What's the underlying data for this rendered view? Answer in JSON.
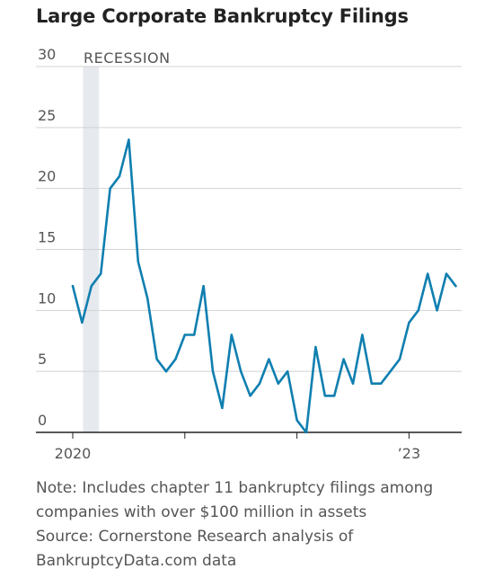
{
  "title": "Large Corporate Bankruptcy Filings",
  "notes": [
    "Note: Includes chapter 11 bankruptcy filings among",
    "companies with over $100 million in assets",
    "Source: Cornerstone Research analysis of",
    "BankruptcyData.com data"
  ],
  "colors": {
    "line": "#0f7fb0",
    "recession": "#e6e9ee",
    "grid": "#d3d3d3",
    "axis": "#222222"
  },
  "chart_data": {
    "type": "line",
    "title": "Large Corporate Bankruptcy Filings",
    "xlabel": "",
    "ylabel": "",
    "ylim": [
      0,
      30
    ],
    "yticks": [
      0,
      5,
      10,
      15,
      20,
      25,
      30
    ],
    "x_tick_labels": [
      {
        "date": "2020-01",
        "label": "2020"
      },
      {
        "date": "2021-01",
        "label": ""
      },
      {
        "date": "2022-01",
        "label": ""
      },
      {
        "date": "2023-01",
        "label": "’23"
      }
    ],
    "grid": "horizontal",
    "recession": {
      "label": "RECESSION",
      "start": "2020-02",
      "end": "2020-04"
    },
    "series": [
      {
        "x": [
          "2020-01",
          "2020-02",
          "2020-03",
          "2020-04",
          "2020-05",
          "2020-06",
          "2020-07",
          "2020-08",
          "2020-09",
          "2020-10",
          "2020-11",
          "2020-12",
          "2021-01",
          "2021-02",
          "2021-03",
          "2021-04",
          "2021-05",
          "2021-06",
          "2021-07",
          "2021-08",
          "2021-09",
          "2021-10",
          "2021-11",
          "2021-12",
          "2022-01",
          "2022-02",
          "2022-03",
          "2022-04",
          "2022-05",
          "2022-06",
          "2022-07",
          "2022-08",
          "2022-09",
          "2022-10",
          "2022-11",
          "2022-12",
          "2023-01",
          "2023-02",
          "2023-03",
          "2023-04",
          "2023-05",
          "2023-06"
        ],
        "values": [
          12,
          9,
          12,
          13,
          20,
          21,
          24,
          14,
          11,
          6,
          5,
          6,
          8,
          8,
          12,
          5,
          2,
          8,
          5,
          3,
          4,
          6,
          4,
          5,
          1,
          0,
          7,
          3,
          3,
          6,
          4,
          8,
          4,
          4,
          5,
          6,
          9,
          10,
          13,
          10,
          13,
          12
        ]
      }
    ]
  }
}
